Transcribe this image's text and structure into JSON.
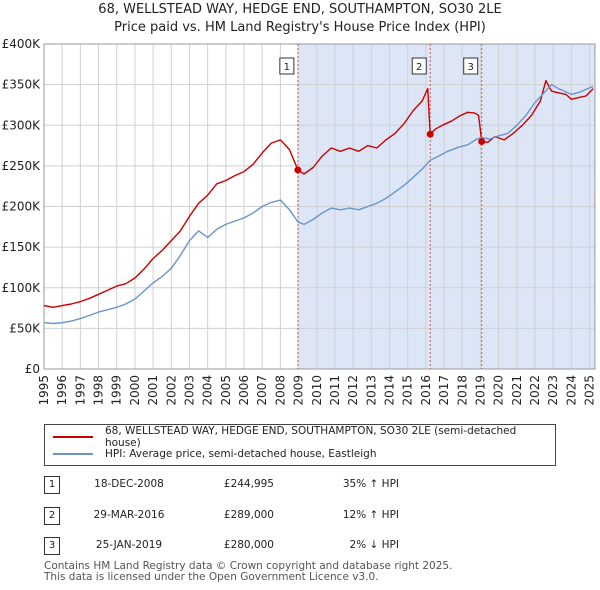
{
  "title_line1": "68, WELLSTEAD WAY, HEDGE END, SOUTHAMPTON, SO30 2LE",
  "title_line2": "Price paid vs. HM Land Registry's House Price Index (HPI)",
  "colors": {
    "property": "#cc0000",
    "hpi": "#6b94cc",
    "shade": "#dde6f6",
    "marker_line": "#cc0000"
  },
  "chart_data": {
    "type": "line",
    "xlim": [
      1995.0,
      2025.3
    ],
    "ylim": [
      0,
      400000
    ],
    "x_ticks": [
      1995,
      1996,
      1997,
      1998,
      1999,
      2000,
      2001,
      2002,
      2003,
      2004,
      2005,
      2006,
      2007,
      2008,
      2009,
      2010,
      2011,
      2012,
      2013,
      2014,
      2015,
      2016,
      2017,
      2018,
      2019,
      2020,
      2021,
      2022,
      2023,
      2024,
      2025
    ],
    "y_ticks": [
      {
        "value": 0,
        "label": "£0"
      },
      {
        "value": 50000,
        "label": "£50K"
      },
      {
        "value": 100000,
        "label": "£100K"
      },
      {
        "value": 150000,
        "label": "£150K"
      },
      {
        "value": 200000,
        "label": "£200K"
      },
      {
        "value": 250000,
        "label": "£250K"
      },
      {
        "value": 300000,
        "label": "£300K"
      },
      {
        "value": 350000,
        "label": "£350K"
      },
      {
        "value": 400000,
        "label": "£400K"
      }
    ],
    "shaded_range": [
      2008.96,
      2025.3
    ],
    "series": [
      {
        "name": "68, WELLSTEAD WAY, HEDGE END, SOUTHAMPTON, SO30 2LE (semi-detached house)",
        "color": "#cc0000",
        "points": [
          [
            1995.0,
            78000
          ],
          [
            1995.5,
            76000
          ],
          [
            1996.0,
            78000
          ],
          [
            1996.5,
            80000
          ],
          [
            1997.0,
            83000
          ],
          [
            1997.5,
            87000
          ],
          [
            1998.0,
            92000
          ],
          [
            1998.5,
            97000
          ],
          [
            1999.0,
            102000
          ],
          [
            1999.5,
            105000
          ],
          [
            2000.0,
            112000
          ],
          [
            2000.5,
            123000
          ],
          [
            2001.0,
            136000
          ],
          [
            2001.5,
            146000
          ],
          [
            2002.0,
            158000
          ],
          [
            2002.5,
            170000
          ],
          [
            2003.0,
            188000
          ],
          [
            2003.5,
            204000
          ],
          [
            2004.0,
            214000
          ],
          [
            2004.5,
            228000
          ],
          [
            2005.0,
            232000
          ],
          [
            2005.5,
            238000
          ],
          [
            2006.0,
            243000
          ],
          [
            2006.5,
            252000
          ],
          [
            2007.0,
            266000
          ],
          [
            2007.5,
            278000
          ],
          [
            2008.0,
            282000
          ],
          [
            2008.5,
            270000
          ],
          [
            2008.96,
            244995
          ],
          [
            2009.3,
            240000
          ],
          [
            2009.8,
            248000
          ],
          [
            2010.3,
            262000
          ],
          [
            2010.8,
            272000
          ],
          [
            2011.3,
            268000
          ],
          [
            2011.8,
            272000
          ],
          [
            2012.3,
            268000
          ],
          [
            2012.8,
            275000
          ],
          [
            2013.3,
            272000
          ],
          [
            2013.8,
            282000
          ],
          [
            2014.3,
            290000
          ],
          [
            2014.8,
            302000
          ],
          [
            2015.3,
            318000
          ],
          [
            2015.8,
            330000
          ],
          [
            2016.1,
            345000
          ],
          [
            2016.24,
            289000
          ],
          [
            2016.5,
            295000
          ],
          [
            2016.9,
            300000
          ],
          [
            2017.4,
            305000
          ],
          [
            2017.9,
            312000
          ],
          [
            2018.3,
            316000
          ],
          [
            2018.7,
            315000
          ],
          [
            2018.9,
            312000
          ],
          [
            2019.07,
            280000
          ],
          [
            2019.4,
            279000
          ],
          [
            2019.8,
            286000
          ],
          [
            2020.3,
            282000
          ],
          [
            2020.8,
            290000
          ],
          [
            2021.3,
            300000
          ],
          [
            2021.8,
            312000
          ],
          [
            2022.3,
            330000
          ],
          [
            2022.6,
            355000
          ],
          [
            2022.9,
            342000
          ],
          [
            2023.3,
            340000
          ],
          [
            2023.7,
            338000
          ],
          [
            2024.0,
            332000
          ],
          [
            2024.4,
            334000
          ],
          [
            2024.8,
            336000
          ],
          [
            2025.2,
            345000
          ]
        ]
      },
      {
        "name": "HPI: Average price, semi-detached house, Eastleigh",
        "color": "#6b94cc",
        "points": [
          [
            1995.0,
            57000
          ],
          [
            1995.5,
            56000
          ],
          [
            1996.0,
            57000
          ],
          [
            1996.5,
            59000
          ],
          [
            1997.0,
            62000
          ],
          [
            1997.5,
            66000
          ],
          [
            1998.0,
            70000
          ],
          [
            1998.5,
            73000
          ],
          [
            1999.0,
            76000
          ],
          [
            1999.5,
            80000
          ],
          [
            2000.0,
            86000
          ],
          [
            2000.5,
            96000
          ],
          [
            2001.0,
            106000
          ],
          [
            2001.5,
            114000
          ],
          [
            2002.0,
            124000
          ],
          [
            2002.5,
            140000
          ],
          [
            2003.0,
            158000
          ],
          [
            2003.5,
            170000
          ],
          [
            2004.0,
            162000
          ],
          [
            2004.5,
            172000
          ],
          [
            2005.0,
            178000
          ],
          [
            2005.5,
            182000
          ],
          [
            2006.0,
            186000
          ],
          [
            2006.5,
            192000
          ],
          [
            2007.0,
            200000
          ],
          [
            2007.5,
            205000
          ],
          [
            2008.0,
            208000
          ],
          [
            2008.5,
            196000
          ],
          [
            2008.96,
            181000
          ],
          [
            2009.3,
            178000
          ],
          [
            2009.8,
            184000
          ],
          [
            2010.3,
            192000
          ],
          [
            2010.8,
            198000
          ],
          [
            2011.3,
            196000
          ],
          [
            2011.8,
            198000
          ],
          [
            2012.3,
            196000
          ],
          [
            2012.8,
            200000
          ],
          [
            2013.3,
            204000
          ],
          [
            2013.8,
            210000
          ],
          [
            2014.3,
            218000
          ],
          [
            2014.8,
            226000
          ],
          [
            2015.3,
            236000
          ],
          [
            2015.8,
            246000
          ],
          [
            2016.24,
            257000
          ],
          [
            2016.7,
            262000
          ],
          [
            2017.2,
            268000
          ],
          [
            2017.8,
            273000
          ],
          [
            2018.3,
            276000
          ],
          [
            2018.8,
            283000
          ],
          [
            2019.07,
            285000
          ],
          [
            2019.5,
            283000
          ],
          [
            2020.0,
            287000
          ],
          [
            2020.5,
            290000
          ],
          [
            2021.0,
            300000
          ],
          [
            2021.5,
            312000
          ],
          [
            2022.0,
            328000
          ],
          [
            2022.5,
            340000
          ],
          [
            2022.9,
            350000
          ],
          [
            2023.3,
            345000
          ],
          [
            2023.7,
            341000
          ],
          [
            2024.0,
            338000
          ],
          [
            2024.5,
            341000
          ],
          [
            2025.0,
            346000
          ],
          [
            2025.2,
            348000
          ]
        ]
      }
    ],
    "sales": [
      {
        "label": "1",
        "x": 2008.96,
        "value": 244995
      },
      {
        "label": "2",
        "x": 2016.24,
        "value": 289000
      },
      {
        "label": "3",
        "x": 2019.07,
        "value": 280000
      }
    ]
  },
  "legend": {
    "property": "68, WELLSTEAD WAY, HEDGE END, SOUTHAMPTON, SO30 2LE (semi-detached house)",
    "hpi": "HPI: Average price, semi-detached house, Eastleigh"
  },
  "transactions": [
    {
      "num": "1",
      "date": "18-DEC-2008",
      "price": "£244,995",
      "hpi": "35% ↑ HPI"
    },
    {
      "num": "2",
      "date": "29-MAR-2016",
      "price": "£289,000",
      "hpi": "12% ↑ HPI"
    },
    {
      "num": "3",
      "date": "25-JAN-2019",
      "price": "£280,000",
      "hpi": "2% ↓ HPI"
    }
  ],
  "footer": {
    "line1": "Contains HM Land Registry data © Crown copyright and database right 2025.",
    "line2": "This data is licensed under the Open Government Licence v3.0."
  }
}
